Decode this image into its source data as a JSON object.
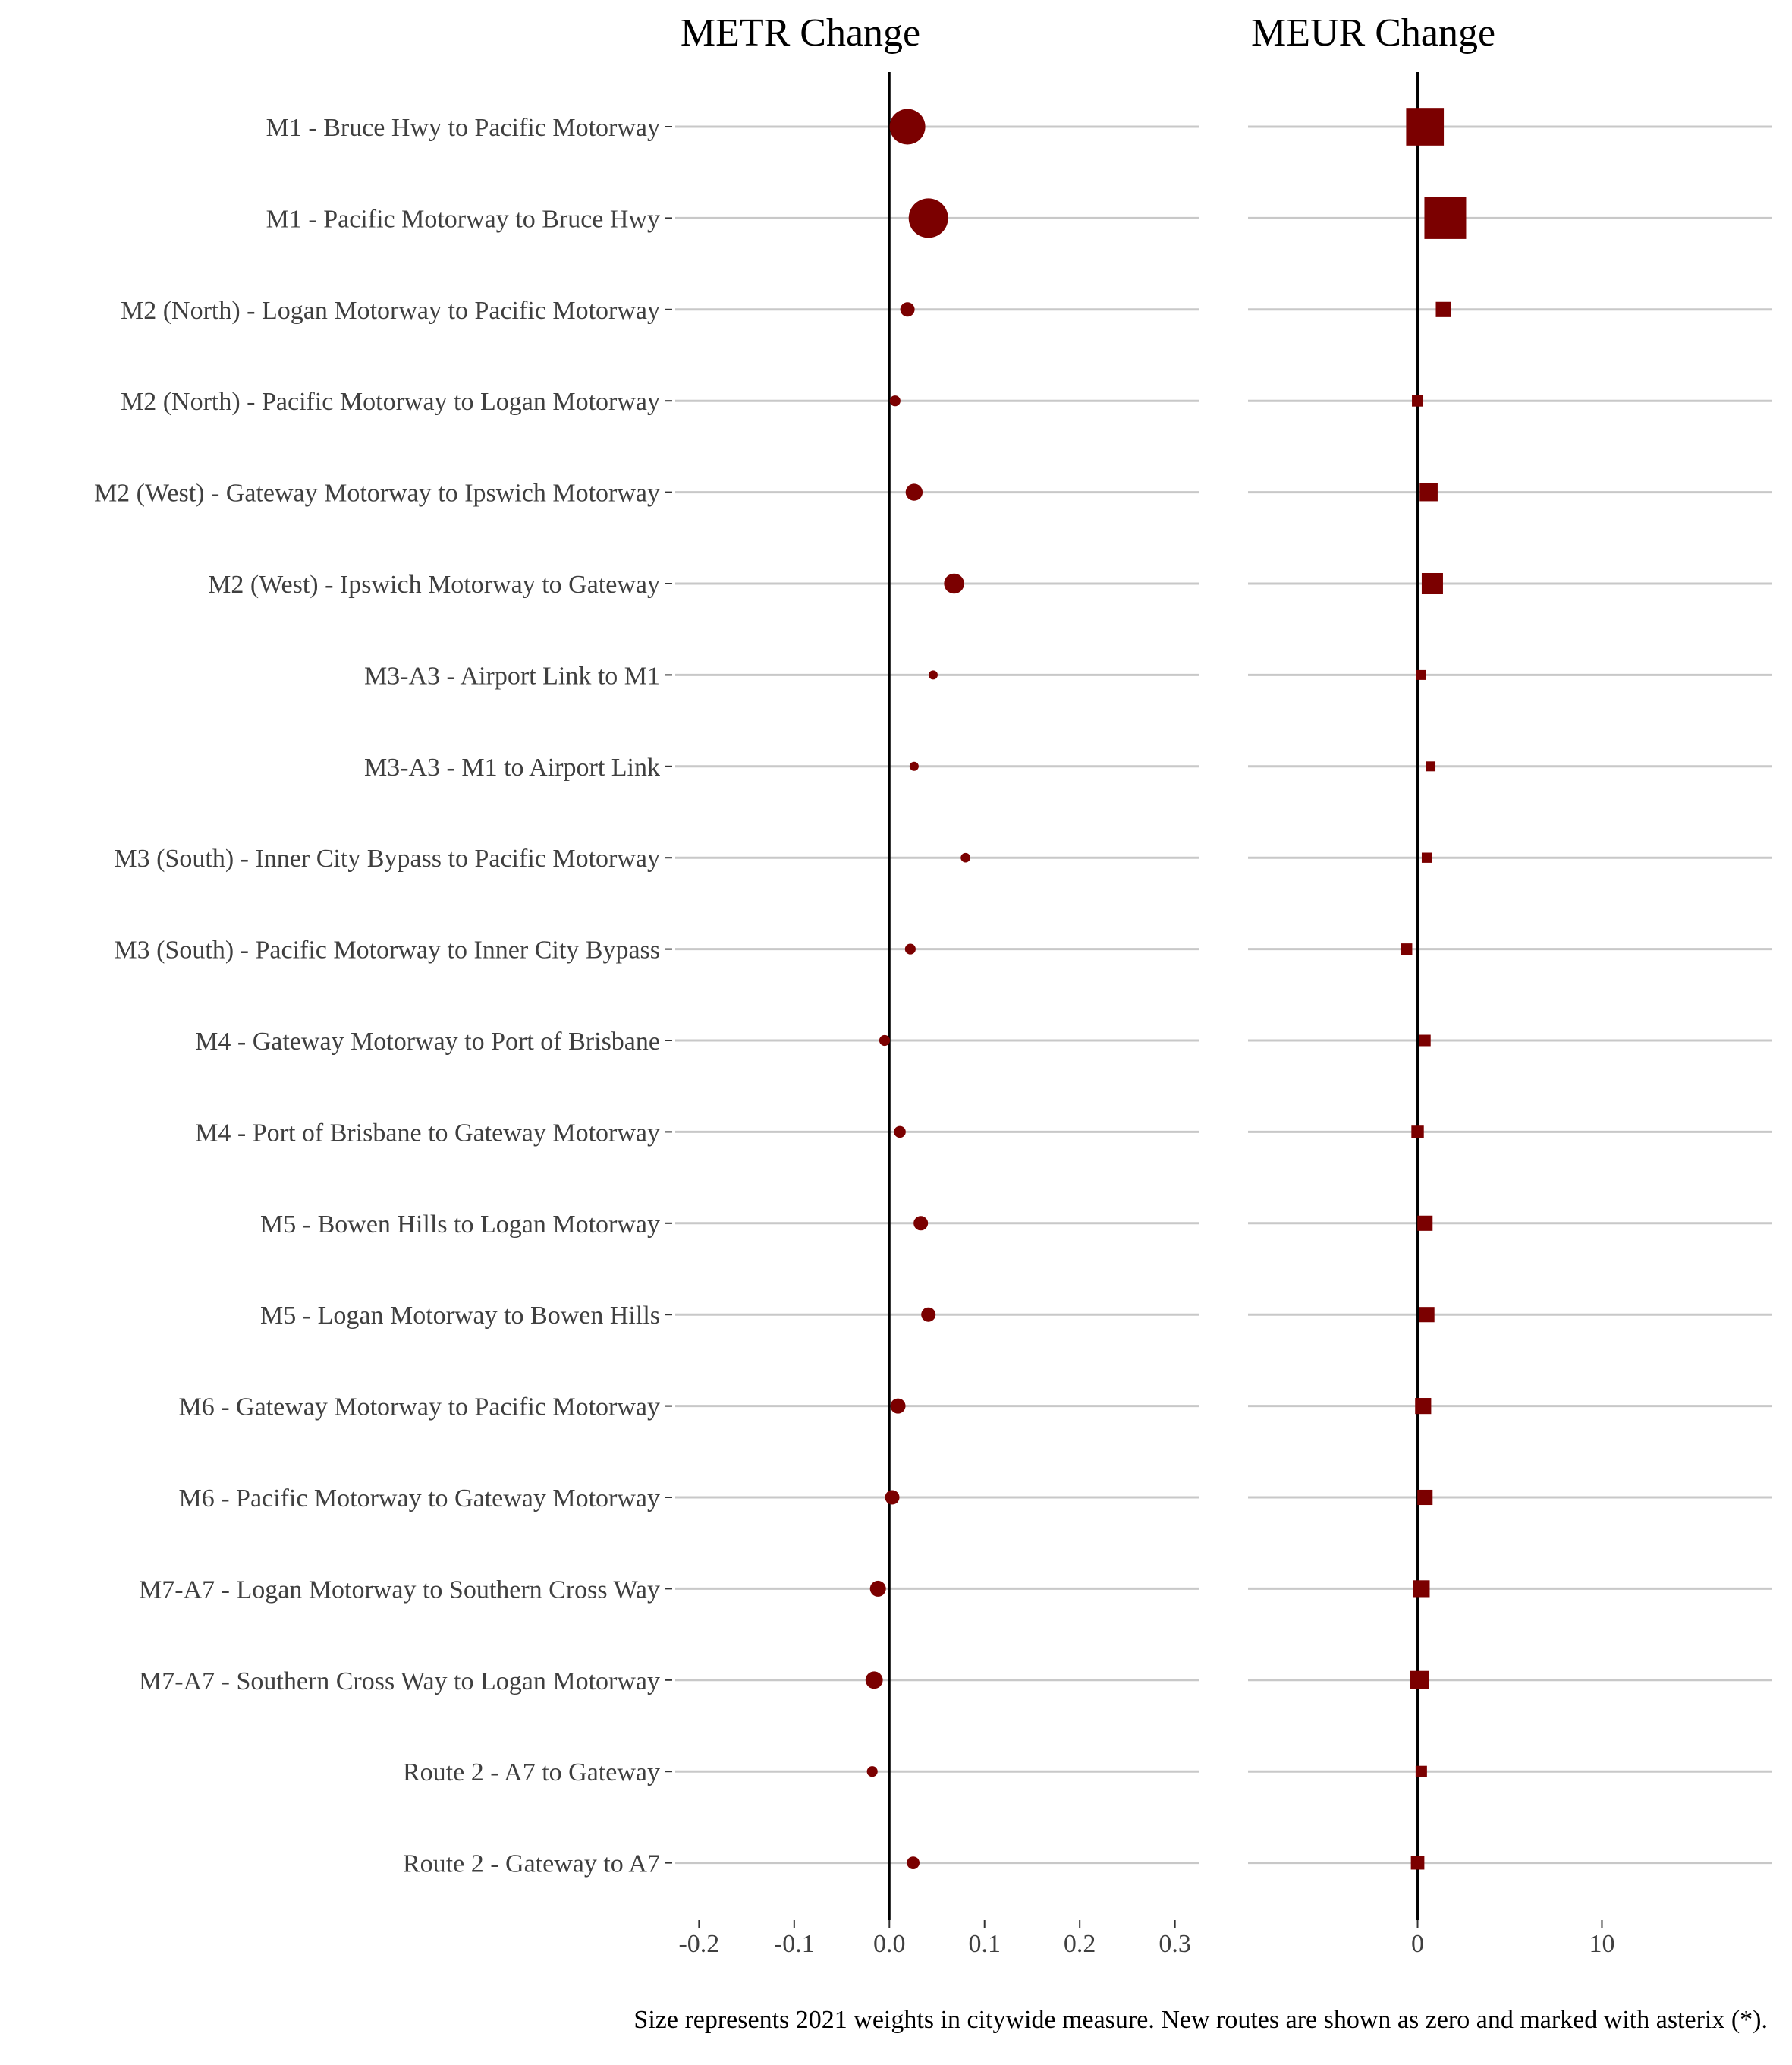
{
  "chart_data": {
    "type": "scatter",
    "routes": [
      "M1 - Bruce Hwy to Pacific Motorway",
      "M1 - Pacific Motorway to Bruce Hwy",
      "M2 (North) - Logan Motorway to Pacific Motorway",
      "M2 (North) - Pacific Motorway to Logan Motorway",
      "M2 (West) - Gateway Motorway to Ipswich Motorway",
      "M2 (West) - Ipswich Motorway to Gateway",
      "M3-A3 - Airport Link to M1",
      "M3-A3 - M1 to Airport Link",
      "M3 (South) - Inner City Bypass to Pacific Motorway",
      "M3 (South) - Pacific Motorway to Inner City Bypass",
      "M4 - Gateway Motorway to Port of Brisbane",
      "M4 - Port of Brisbane to Gateway Motorway",
      "M5 - Bowen Hills to Logan Motorway",
      "M5 - Logan Motorway to Bowen Hills",
      "M6 - Gateway Motorway to Pacific Motorway",
      "M6 - Pacific Motorway to Gateway Motorway",
      "M7-A7 - Logan Motorway to Southern Cross Way",
      "M7-A7 - Southern Cross Way to Logan Motorway",
      "Route 2 - A7 to Gateway",
      "Route 2 - Gateway to A7"
    ],
    "weights_2021": [
      0.11,
      0.135,
      0.018,
      0.01,
      0.025,
      0.035,
      0.003,
      0.003,
      0.008,
      0.01,
      0.01,
      0.012,
      0.018,
      0.018,
      0.02,
      0.018,
      0.022,
      0.026,
      0.01,
      0.014
    ],
    "panels": [
      {
        "title": "METR Change",
        "marker": "circle",
        "xlim": [
          -0.225,
          0.325
        ],
        "xticks": [
          -0.2,
          -0.1,
          0.0,
          0.1,
          0.2,
          0.3
        ],
        "xtick_labels": [
          "-0.2",
          "-0.1",
          "0.0",
          "0.1",
          "0.2",
          "0.3"
        ],
        "values": [
          0.019,
          0.041,
          0.019,
          0.006,
          0.026,
          0.068,
          0.046,
          0.026,
          0.08,
          0.022,
          -0.005,
          0.011,
          0.033,
          0.041,
          0.009,
          0.003,
          -0.012,
          -0.016,
          -0.018,
          0.025
        ]
      },
      {
        "title": "MEUR Change",
        "marker": "square",
        "xlim": [
          -9.2,
          19.2
        ],
        "xticks": [
          0,
          10
        ],
        "xtick_labels": [
          "0",
          "10"
        ],
        "values": [
          0.4,
          1.5,
          1.4,
          0.0,
          0.6,
          0.8,
          0.2,
          0.7,
          0.5,
          -0.6,
          0.4,
          0.0,
          0.4,
          0.5,
          0.3,
          0.4,
          0.2,
          0.1,
          0.2,
          0.0
        ]
      }
    ],
    "grid": true,
    "legend": "none",
    "caption": "Size represents 2021 weights in citywide measure. New routes are shown as zero and marked with asterix (*).",
    "colors": {
      "marker": "#7b0000",
      "gridline": "#c8c8c8",
      "zero_line": "#000000",
      "text": "#3f3f3f"
    }
  }
}
